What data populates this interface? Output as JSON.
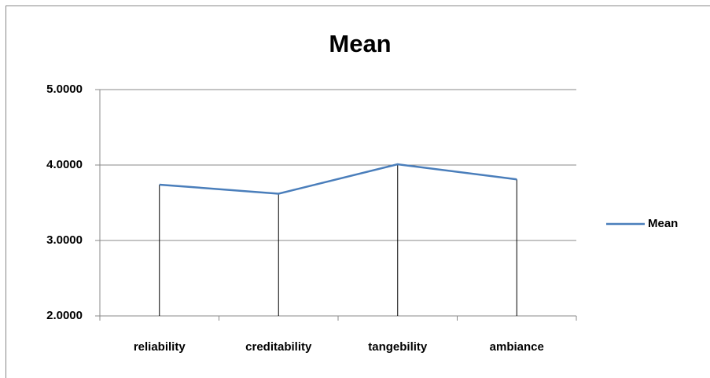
{
  "chart_data": {
    "type": "line",
    "title": "Mean",
    "categories": [
      "reliability",
      "creditability",
      "tangebility",
      "ambiance"
    ],
    "series": [
      {
        "name": "Mean",
        "color": "#4a7ebb",
        "values": [
          3.74,
          3.62,
          4.01,
          3.81
        ]
      }
    ],
    "ylim": [
      2,
      5
    ],
    "yticks": [
      {
        "value": 2,
        "label": "2.0000"
      },
      {
        "value": 3,
        "label": "3.0000"
      },
      {
        "value": 4,
        "label": "4.0000"
      },
      {
        "value": 5,
        "label": "5.0000"
      }
    ],
    "grid": true,
    "drop_lines": true,
    "legend": "right"
  }
}
